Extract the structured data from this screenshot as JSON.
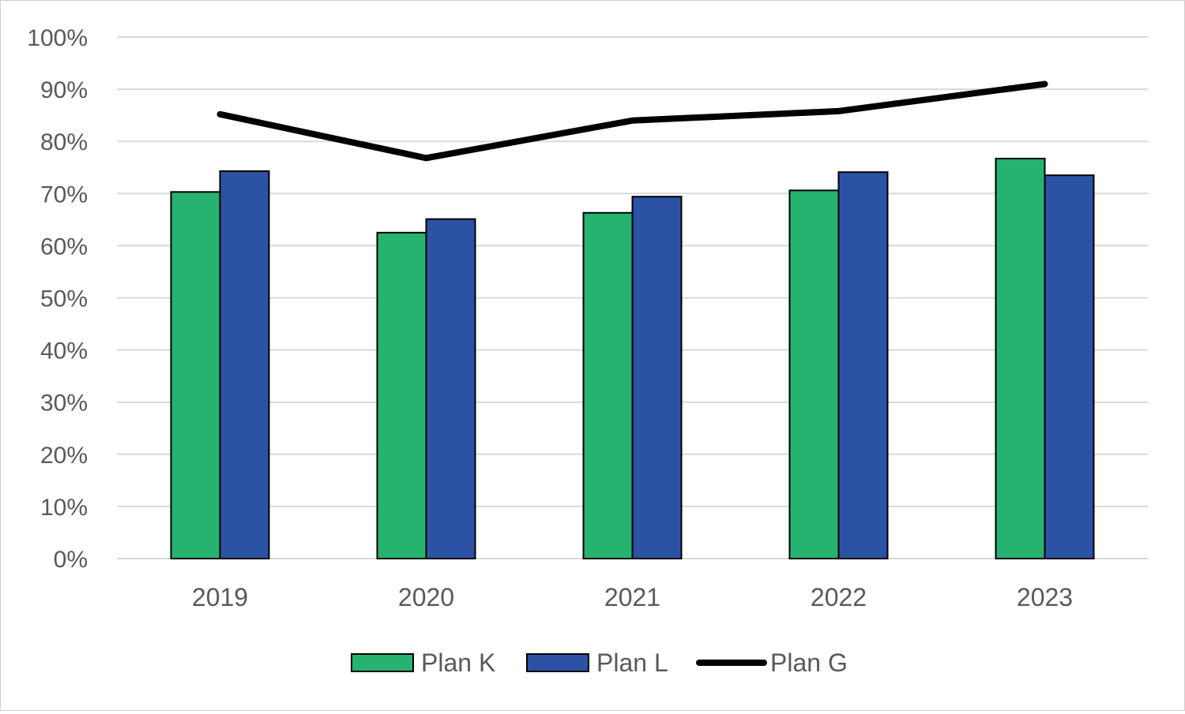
{
  "chart_data": {
    "type": "bar",
    "categories": [
      "2019",
      "2020",
      "2021",
      "2022",
      "2023"
    ],
    "series": [
      {
        "name": "Plan K",
        "type": "bar",
        "color": "#26b36f",
        "values": [
          70.3,
          62.5,
          66.3,
          70.6,
          76.7
        ]
      },
      {
        "name": "Plan L",
        "type": "bar",
        "color": "#2b52a5",
        "values": [
          74.3,
          65.1,
          69.4,
          74.1,
          73.5
        ]
      },
      {
        "name": "Plan G",
        "type": "line",
        "color": "#000000",
        "values": [
          85.2,
          76.8,
          84.0,
          85.8,
          91.0
        ]
      }
    ],
    "y_ticks": [
      "0%",
      "10%",
      "20%",
      "30%",
      "40%",
      "50%",
      "60%",
      "70%",
      "80%",
      "90%",
      "100%"
    ],
    "ylim": [
      0,
      100
    ],
    "grid": true,
    "legend_position": "bottom"
  }
}
